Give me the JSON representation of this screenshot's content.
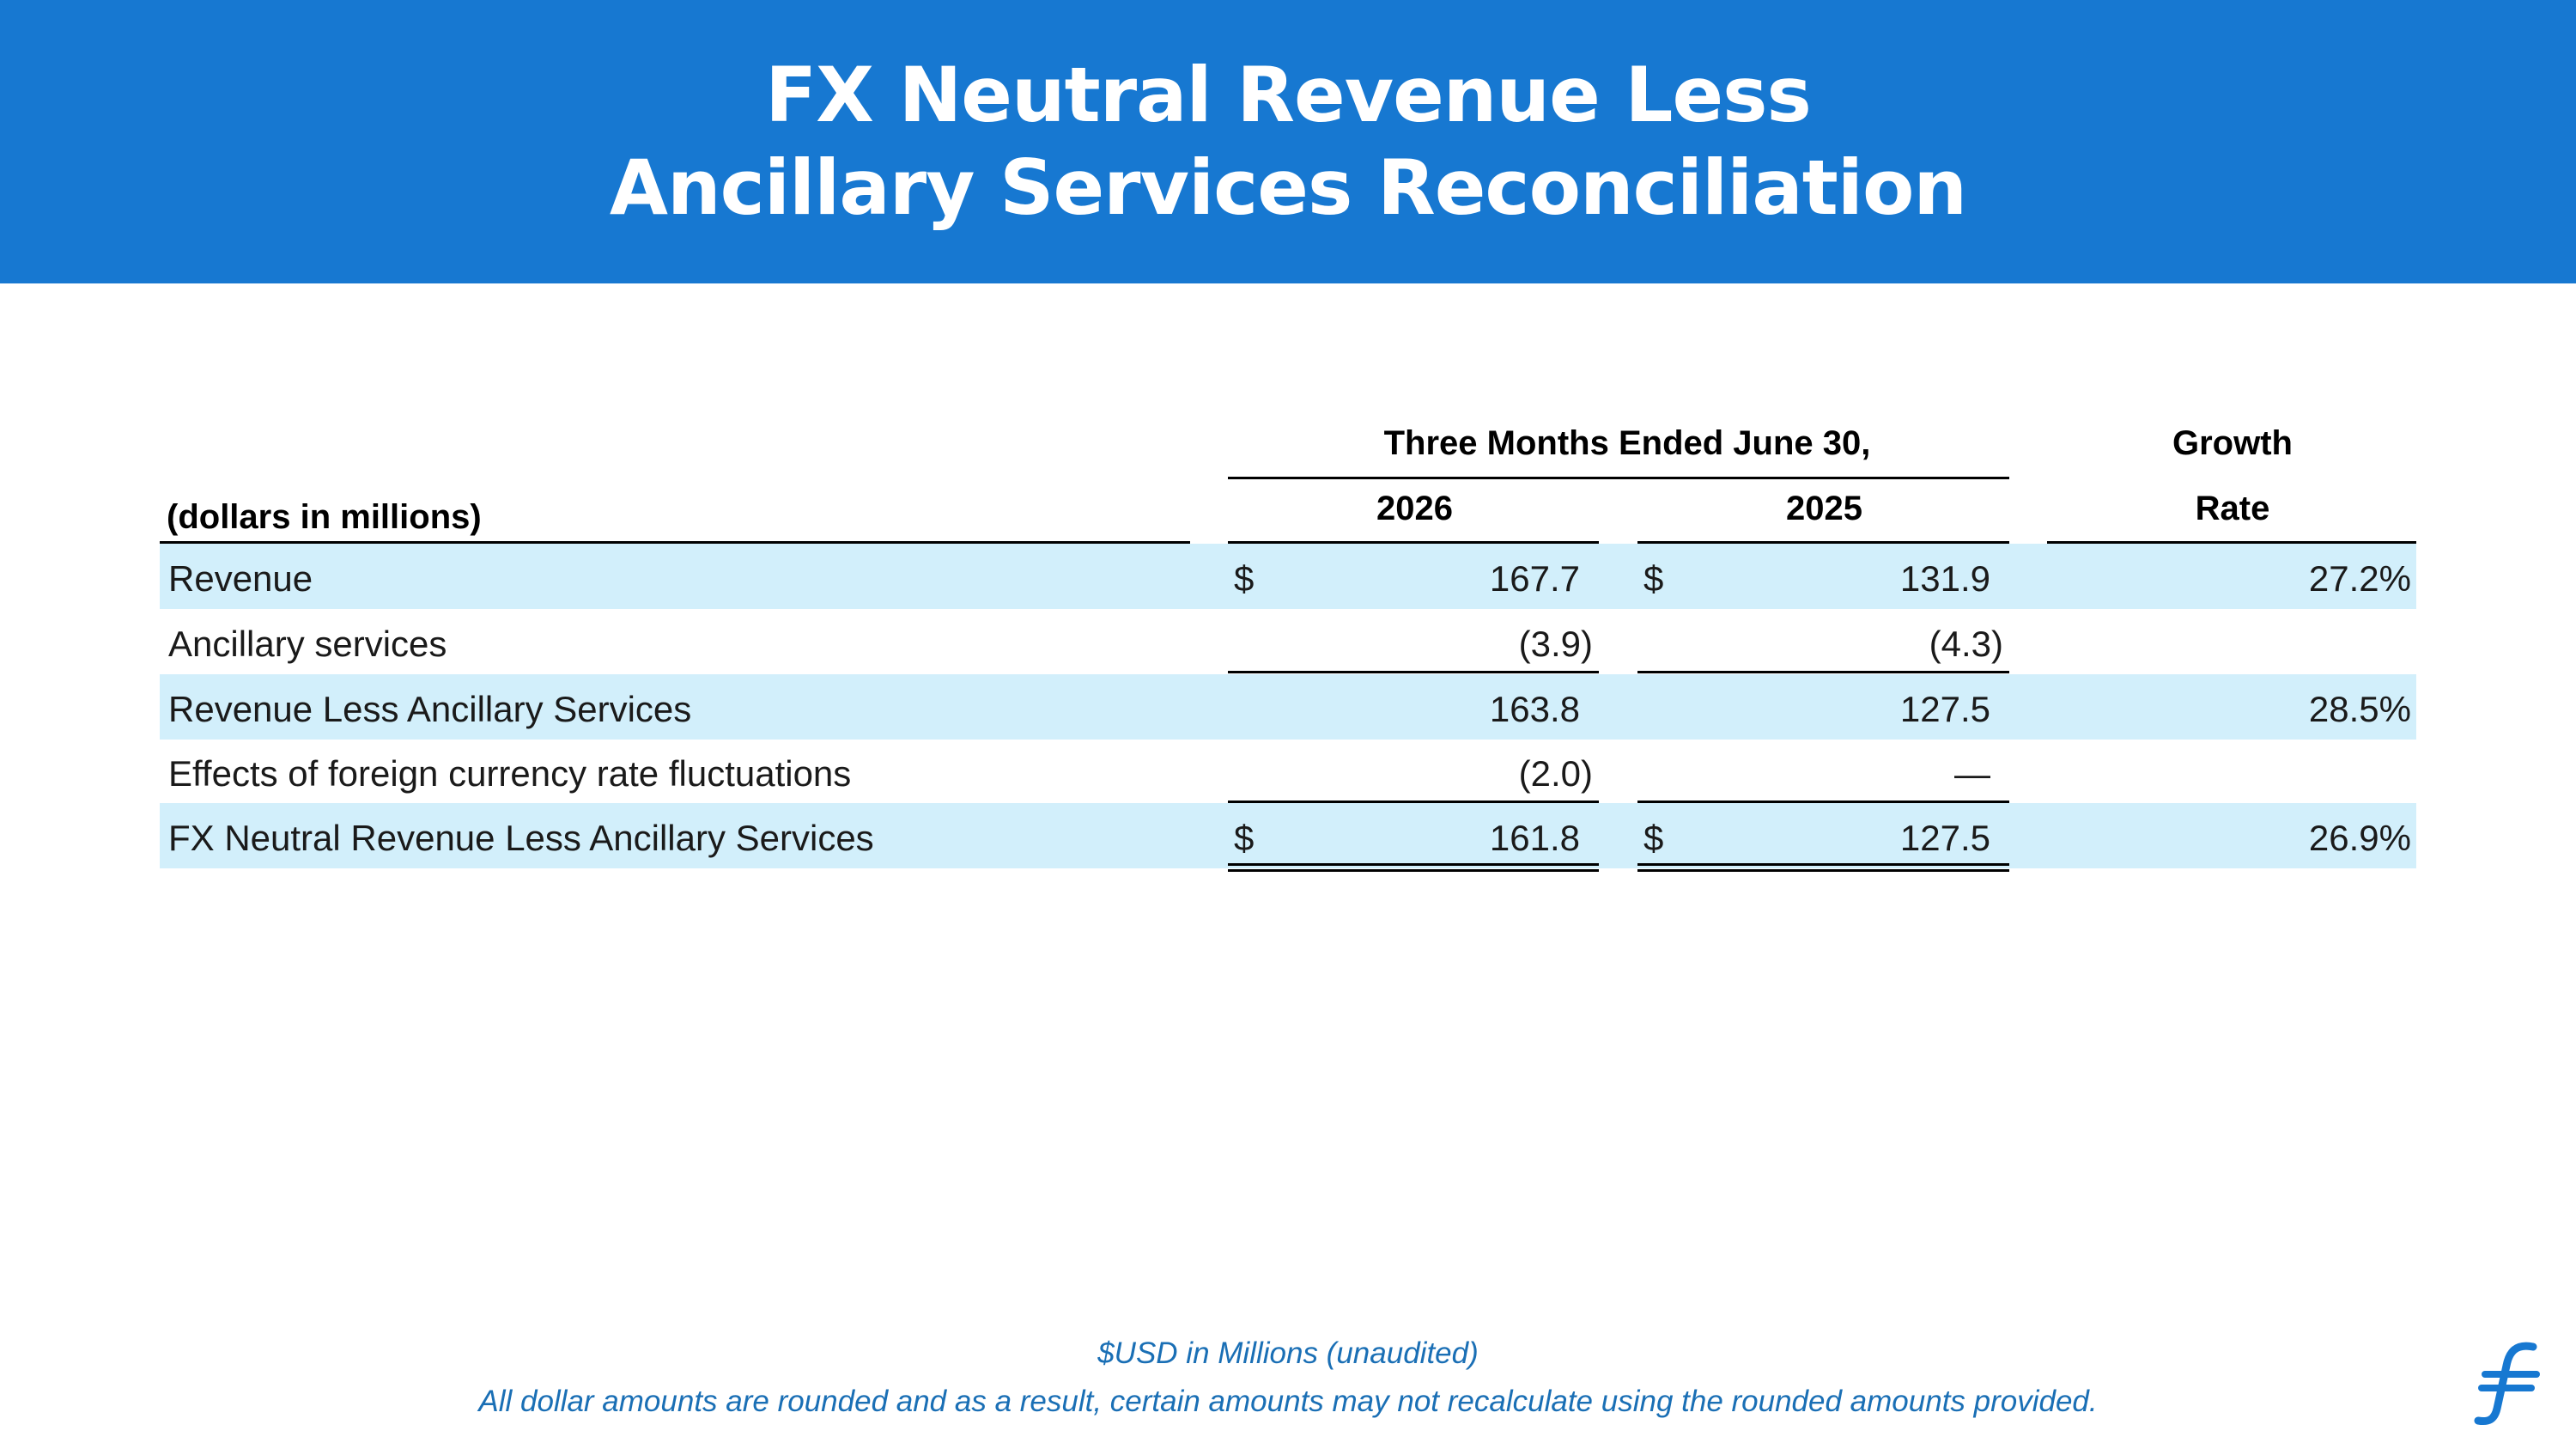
{
  "slide": {
    "title_line1": "FX Neutral Revenue Less",
    "title_line2": "Ancillary Services Reconciliation"
  },
  "table": {
    "period_header": "Three Months Ended June 30,",
    "growth_header_line1": "Growth",
    "growth_header_line2": "Rate",
    "label_header": "(dollars in millions)",
    "year1": "2026",
    "year2": "2025",
    "rows": [
      {
        "label": "Revenue",
        "cur1": "$",
        "v2026": "167.7",
        "cur2": "$",
        "v2025": "131.9",
        "growth": "27.2%"
      },
      {
        "label": "Ancillary services",
        "cur1": "",
        "v2026": "(3.9)",
        "cur2": "",
        "v2025": "(4.3)",
        "growth": ""
      },
      {
        "label": "Revenue Less Ancillary Services",
        "cur1": "",
        "v2026": "163.8",
        "cur2": "",
        "v2025": "127.5",
        "growth": "28.5%"
      },
      {
        "label": "Effects of foreign currency rate fluctuations",
        "cur1": "",
        "v2026": "(2.0)",
        "cur2": "",
        "v2025": "—",
        "growth": ""
      },
      {
        "label": "FX Neutral Revenue Less Ancillary Services",
        "cur1": "$",
        "v2026": "161.8",
        "cur2": "$",
        "v2025": "127.5",
        "growth": "26.9%"
      }
    ]
  },
  "footer": {
    "note1": "$USD in Millions (unaudited)",
    "note2": "All dollar amounts are rounded and as a result, certain amounts may not recalculate using the rounded amounts provided."
  },
  "logo": {
    "icon": "flywire-logo-icon",
    "color": "#1778d1"
  },
  "colors": {
    "header_bg": "#1778d1",
    "row_band": "#d2effb",
    "footer_text": "#1a6fb5"
  }
}
